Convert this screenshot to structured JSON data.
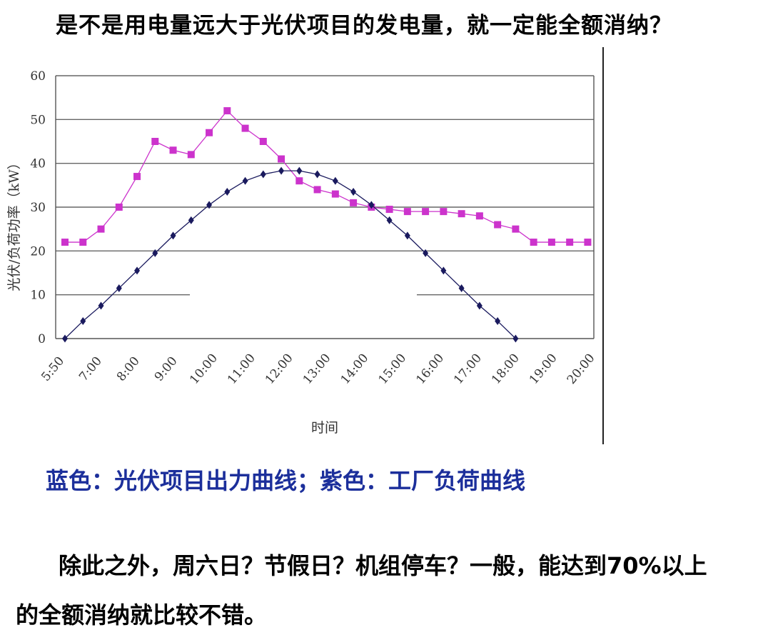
{
  "heading": "是不是用电量远大于光伏项目的发电量，就一定能全额消纳？",
  "legend_note": "蓝色：光伏项目出力曲线；紫色：工厂负荷曲线",
  "paragraph_line1": "除此之外，周六日？节假日？机组停车？一般，能达到70%以上",
  "paragraph_line2": "的全额消纳就比较不错。",
  "chart_data": {
    "type": "line",
    "xlabel": "时间",
    "ylabel": "光伏/负荷功率（kW）",
    "ylim": [
      0,
      60
    ],
    "yticks": [
      0,
      10,
      20,
      30,
      40,
      50,
      60
    ],
    "x_tick_labels": [
      "5:50",
      "7:00",
      "8:00",
      "9:00",
      "10:00",
      "11:00",
      "12:00",
      "13:00",
      "14:00",
      "15:00",
      "16:00",
      "17:00",
      "18:00",
      "19:00",
      "20:00"
    ],
    "grid": true,
    "series": [
      {
        "color": "#cc33cc",
        "marker": "square",
        "x": [
          5.83,
          6.33,
          6.83,
          7.33,
          7.83,
          8.33,
          8.83,
          9.33,
          9.83,
          10.33,
          10.83,
          11.33,
          11.83,
          12.33,
          12.83,
          13.33,
          13.83,
          14.33,
          14.83,
          15.33,
          15.83,
          16.33,
          16.83,
          17.33,
          17.83,
          18.33,
          18.83,
          19.33,
          19.83,
          20.33
        ],
        "values": [
          22,
          22,
          25,
          30,
          37,
          45,
          43,
          42,
          47,
          52,
          48,
          45,
          41,
          36,
          34,
          33,
          31,
          30,
          29.5,
          29,
          29,
          29,
          28.5,
          28,
          26,
          25,
          22,
          22,
          22,
          22
        ]
      },
      {
        "color": "#1a1a5e",
        "marker": "diamond",
        "x": [
          5.83,
          6.33,
          6.83,
          7.33,
          7.83,
          8.33,
          8.83,
          9.33,
          9.83,
          10.33,
          10.83,
          11.33,
          11.83,
          12.33,
          12.83,
          13.33,
          13.83,
          14.33,
          14.83,
          15.33,
          15.83,
          16.33,
          16.83,
          17.33,
          17.83,
          18.33
        ],
        "values": [
          0,
          4,
          7.5,
          11.5,
          15.5,
          19.5,
          23.5,
          27,
          30.5,
          33.5,
          36,
          37.5,
          38.3,
          38.3,
          37.5,
          36,
          33.5,
          30.5,
          27,
          23.5,
          19.5,
          15.5,
          11.5,
          7.5,
          4,
          0
        ]
      }
    ]
  }
}
